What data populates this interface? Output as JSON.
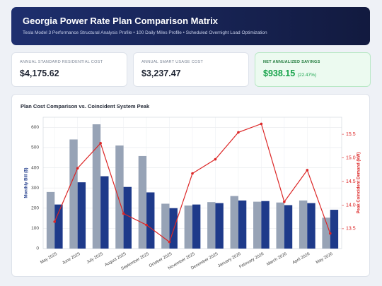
{
  "header": {
    "title": "Georgia Power Rate Plan Comparison Matrix",
    "subtitle": "Tesla Model 3 Performance Structural Analysis Profile • 100 Daily Miles Profile • Scheduled Overnight Load Optimization"
  },
  "kpis": [
    {
      "label": "ANNUAL STANDARD RESIDENTIAL COST",
      "value": "$4,175.62"
    },
    {
      "label": "ANNUAL SMART USAGE COST",
      "value": "$3,237.47"
    },
    {
      "label": "NET ANNUALIZED SAVINGS",
      "value": "$938.15",
      "note": "(22.47%)"
    }
  ],
  "chart_data": {
    "type": "bar",
    "title": "Plan Cost Comparison vs. Coincident System Peak",
    "categories": [
      "May 2025",
      "June 2025",
      "July 2025",
      "August 2025",
      "September 2025",
      "October 2025",
      "November 2025",
      "December 2025",
      "January 2026",
      "February 2026",
      "March 2026",
      "April 2026",
      "May 2026"
    ],
    "y_label": "Monthly Bill ($)",
    "y2_label": "Peak Coincident Demand (kW)",
    "ylim": [
      0,
      650
    ],
    "yticks": [
      0,
      100,
      200,
      300,
      400,
      500,
      600
    ],
    "y2lim": [
      13.08,
      15.86
    ],
    "y2ticks": [
      13.5,
      {
        "value": 14,
        "label": "14.0"
      },
      14.5,
      {
        "value": 15,
        "label": "15.0"
      },
      15.5
    ],
    "grid": true,
    "series": [
      {
        "type": "bar",
        "color": "#97a3b6",
        "values": [
          280,
          540,
          615,
          510,
          458,
          222,
          213,
          230,
          260,
          232,
          228,
          238,
          153
        ]
      },
      {
        "type": "bar",
        "color": "#1e3a8a",
        "values": [
          218,
          328,
          358,
          305,
          278,
          200,
          218,
          225,
          238,
          235,
          215,
          225,
          192
        ]
      },
      {
        "type": "line",
        "axis": "y2",
        "color": "#dc2626",
        "values": [
          13.65,
          14.78,
          15.31,
          13.82,
          13.58,
          13.22,
          14.67,
          14.97,
          15.54,
          15.72,
          14.07,
          14.74,
          13.4
        ]
      }
    ]
  }
}
